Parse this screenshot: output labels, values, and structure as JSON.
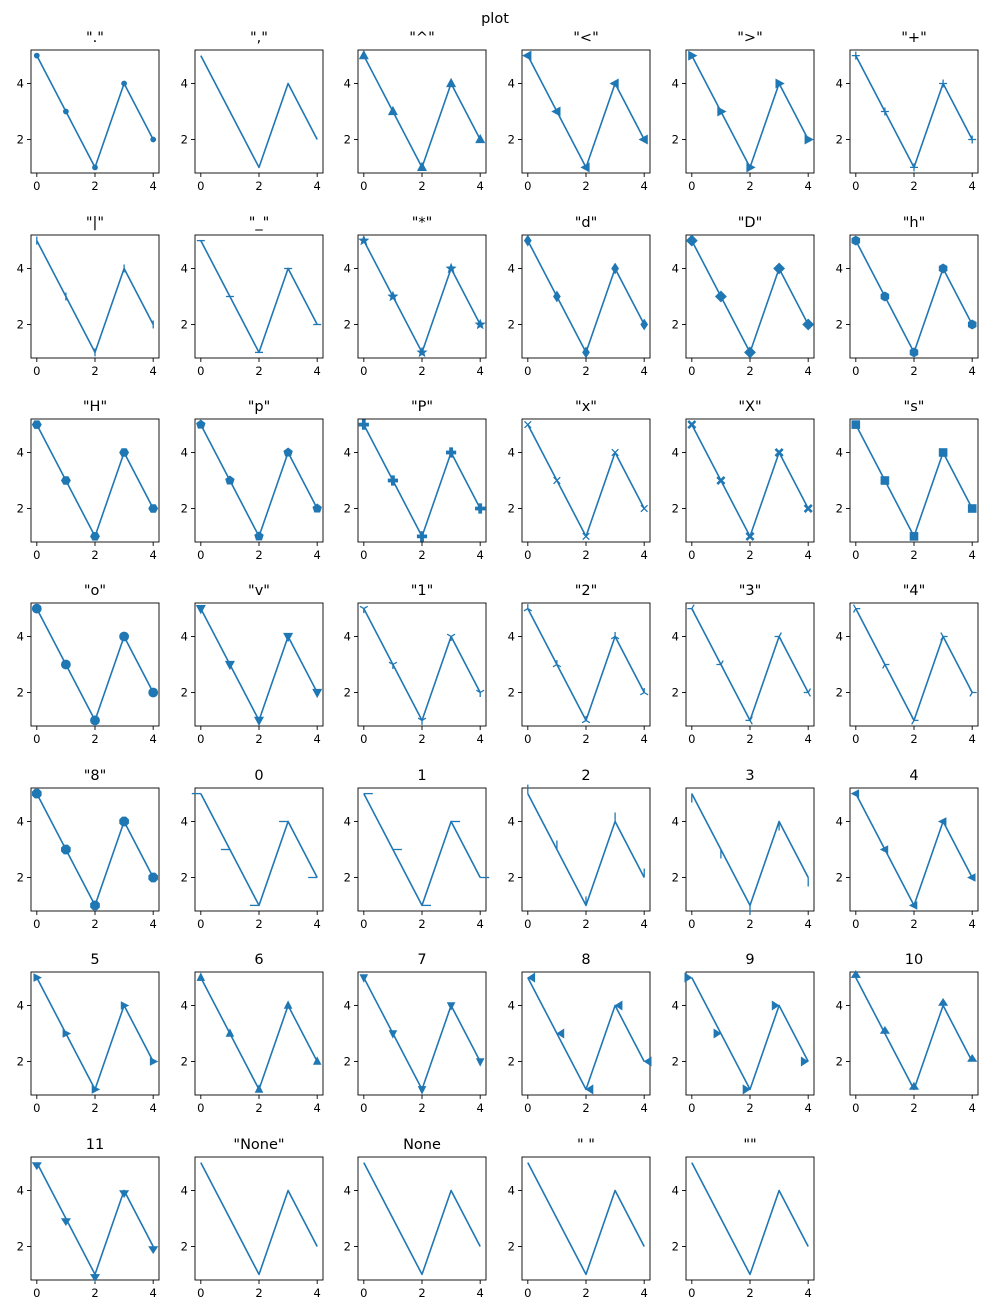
{
  "figure_title": "plot",
  "colors": {
    "series": "#1f77b4",
    "text": "#000000",
    "frame": "#000000",
    "background": "#ffffff"
  },
  "chart_data": {
    "type": "line",
    "layout": "subplot grid, 7 rows x 6 columns",
    "x": [
      0,
      1,
      2,
      3,
      4
    ],
    "y": [
      5,
      3,
      1,
      4,
      2
    ],
    "xticks": [
      0,
      2,
      4
    ],
    "yticks": [
      2,
      4
    ],
    "xlim": [
      -0.2,
      4.2
    ],
    "ylim": [
      0.8,
      5.2
    ],
    "grid": false,
    "legend": "none",
    "panels": [
      {
        "title": "\".\"",
        "marker": "point"
      },
      {
        "title": "\",\"",
        "marker": "pixel"
      },
      {
        "title": "\"^\"",
        "marker": "triangle-up"
      },
      {
        "title": "\"<\"",
        "marker": "triangle-left"
      },
      {
        "title": "\">\"",
        "marker": "triangle-right"
      },
      {
        "title": "\"+\"",
        "marker": "plus"
      },
      {
        "title": "\"|\"",
        "marker": "vline"
      },
      {
        "title": "\"_\"",
        "marker": "hline"
      },
      {
        "title": "\"*\"",
        "marker": "star"
      },
      {
        "title": "\"d\"",
        "marker": "thin-diamond"
      },
      {
        "title": "\"D\"",
        "marker": "diamond"
      },
      {
        "title": "\"h\"",
        "marker": "hexagon1"
      },
      {
        "title": "\"H\"",
        "marker": "hexagon2"
      },
      {
        "title": "\"p\"",
        "marker": "pentagon"
      },
      {
        "title": "\"P\"",
        "marker": "plus-filled"
      },
      {
        "title": "\"x\"",
        "marker": "x"
      },
      {
        "title": "\"X\"",
        "marker": "x-filled"
      },
      {
        "title": "\"s\"",
        "marker": "square"
      },
      {
        "title": "\"o\"",
        "marker": "circle"
      },
      {
        "title": "\"v\"",
        "marker": "triangle-down"
      },
      {
        "title": "\"1\"",
        "marker": "tri-down"
      },
      {
        "title": "\"2\"",
        "marker": "tri-up"
      },
      {
        "title": "\"3\"",
        "marker": "tri-left"
      },
      {
        "title": "\"4\"",
        "marker": "tri-right"
      },
      {
        "title": "\"8\"",
        "marker": "octagon"
      },
      {
        "title": "0",
        "marker": "tickleft"
      },
      {
        "title": "1",
        "marker": "tickright"
      },
      {
        "title": "2",
        "marker": "tickup"
      },
      {
        "title": "3",
        "marker": "tickdown"
      },
      {
        "title": "4",
        "marker": "caretleft"
      },
      {
        "title": "5",
        "marker": "caretright"
      },
      {
        "title": "6",
        "marker": "caretup"
      },
      {
        "title": "7",
        "marker": "caretdown"
      },
      {
        "title": "8",
        "marker": "caretleft-base"
      },
      {
        "title": "9",
        "marker": "caretright-base"
      },
      {
        "title": "10",
        "marker": "caretup-base"
      },
      {
        "title": "11",
        "marker": "caretdown-base"
      },
      {
        "title": "\"None\"",
        "marker": "none"
      },
      {
        "title": "None",
        "marker": "none"
      },
      {
        "title": "\" \"",
        "marker": "none"
      },
      {
        "title": "\"\"",
        "marker": "none"
      }
    ]
  }
}
